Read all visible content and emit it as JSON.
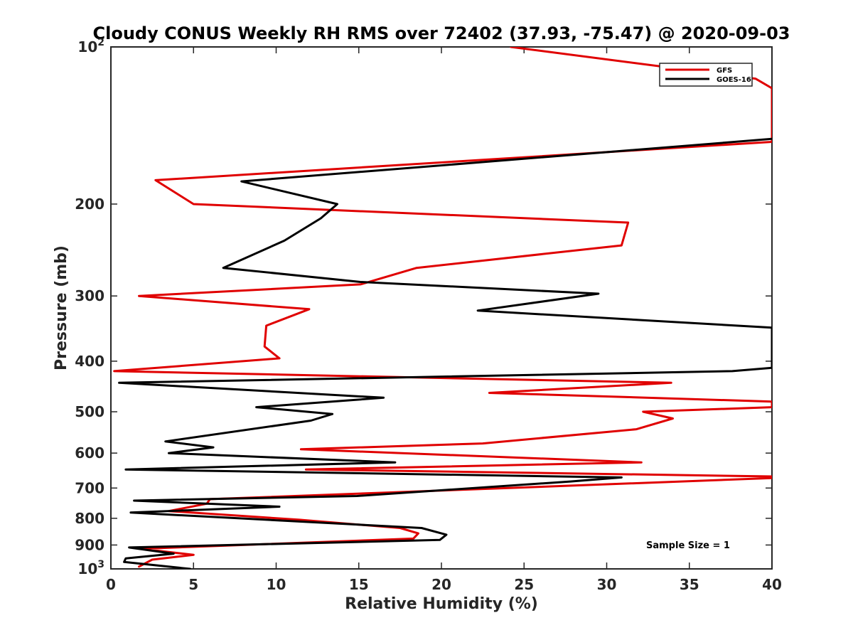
{
  "chart_data": {
    "type": "line",
    "title": "Cloudy CONUS Weekly RH RMS over 72402 (37.93, -75.47) @ 2020-09-03",
    "xlabel": "Relative Humidity (%)",
    "ylabel": "Pressure (mb)",
    "xlim": [
      0,
      40
    ],
    "ylim": [
      100,
      1000
    ],
    "y_scale": "log",
    "y_reversed": true,
    "x_ticks": [
      0,
      5,
      10,
      15,
      20,
      25,
      30,
      35,
      40
    ],
    "x_tick_labels": [
      "0",
      "5",
      "10",
      "15",
      "20",
      "25",
      "30",
      "35",
      "40"
    ],
    "y_ticks": [
      100,
      200,
      300,
      400,
      500,
      600,
      700,
      800,
      900,
      1000
    ],
    "y_tick_labels": [
      "10^2",
      "200",
      "300",
      "400",
      "500",
      "600",
      "700",
      "800",
      "900",
      "10^3"
    ],
    "grid": false,
    "legend": {
      "position": "top-right",
      "entries": [
        "GFS",
        "GOES-16"
      ]
    },
    "annotation": "Sample Size = 1",
    "colors": {
      "GFS": "#e00000",
      "GOES-16": "#000000"
    },
    "series": [
      {
        "name": "GFS",
        "color": "#e00000",
        "points": [
          [
            24.2,
            100
          ],
          [
            39,
            115
          ],
          [
            40,
            120
          ],
          [
            40,
            152
          ],
          [
            2.7,
            180
          ],
          [
            5.0,
            200
          ],
          [
            31.3,
            217
          ],
          [
            30.9,
            240
          ],
          [
            18.5,
            265
          ],
          [
            15.1,
            285
          ],
          [
            1.7,
            300
          ],
          [
            12.0,
            318
          ],
          [
            9.4,
            342
          ],
          [
            9.3,
            375
          ],
          [
            10.2,
            395
          ],
          [
            0.2,
            418
          ],
          [
            33.9,
            440
          ],
          [
            22.9,
            460
          ],
          [
            40,
            478
          ],
          [
            40,
            490
          ],
          [
            32.2,
            500
          ],
          [
            34.0,
            515
          ],
          [
            31.8,
            540
          ],
          [
            22.5,
            575
          ],
          [
            11.5,
            590
          ],
          [
            32.1,
            625
          ],
          [
            11.8,
            645
          ],
          [
            40,
            665
          ],
          [
            40,
            670
          ],
          [
            16.2,
            715
          ],
          [
            6.0,
            735
          ],
          [
            5.8,
            750
          ],
          [
            3.5,
            775
          ],
          [
            11.4,
            805
          ],
          [
            17.5,
            835
          ],
          [
            18.6,
            855
          ],
          [
            18.3,
            875
          ],
          [
            1.8,
            915
          ],
          [
            5.0,
            940
          ],
          [
            2.5,
            960
          ],
          [
            1.7,
            990
          ]
        ]
      },
      {
        "name": "GOES-16",
        "color": "#000000",
        "points": [
          [
            40,
            150
          ],
          [
            7.9,
            181
          ],
          [
            13.7,
            200
          ],
          [
            12.7,
            213
          ],
          [
            10.5,
            235
          ],
          [
            6.8,
            265
          ],
          [
            15.1,
            282
          ],
          [
            29.5,
            297
          ],
          [
            22.2,
            320
          ],
          [
            40,
            345
          ],
          [
            40,
            412
          ],
          [
            37.6,
            418
          ],
          [
            0.5,
            440
          ],
          [
            16.5,
            470
          ],
          [
            8.8,
            490
          ],
          [
            13.4,
            505
          ],
          [
            12.1,
            520
          ],
          [
            3.3,
            570
          ],
          [
            6.2,
            585
          ],
          [
            3.5,
            600
          ],
          [
            17.2,
            625
          ],
          [
            0.9,
            645
          ],
          [
            30.9,
            668
          ],
          [
            27.8,
            680
          ],
          [
            14.9,
            725
          ],
          [
            1.4,
            740
          ],
          [
            10.2,
            760
          ],
          [
            1.2,
            780
          ],
          [
            18.8,
            835
          ],
          [
            20.3,
            860
          ],
          [
            19.9,
            880
          ],
          [
            1.1,
            910
          ],
          [
            3.8,
            935
          ],
          [
            0.9,
            955
          ],
          [
            0.8,
            970
          ],
          [
            4.8,
            1000
          ]
        ]
      }
    ]
  }
}
